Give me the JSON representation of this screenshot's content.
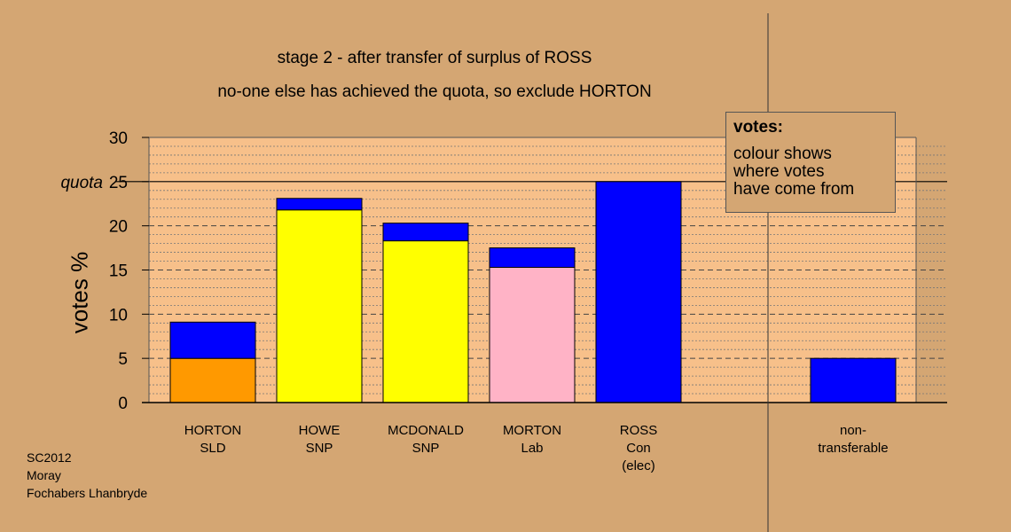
{
  "title_line1": "stage 2 - after transfer of surplus of ROSS",
  "title_line2": "no-one else has achieved the quota, so exclude HORTON",
  "legend": {
    "title": "votes:",
    "lines": [
      "colour shows",
      "where votes",
      "have come from"
    ]
  },
  "footer": [
    "SC2012",
    "Moray",
    "Fochabers Lhanbryde"
  ],
  "colors": {
    "background": "#d4a673",
    "plot_area": "#f7c08a",
    "transfer": "#0000ff",
    "SLD": "#ff9900",
    "SNP": "#ffff00",
    "Lab": "#ffb3c6",
    "Con": "#0000ff"
  },
  "chart_data": {
    "type": "bar",
    "stacked": true,
    "title": "stage 2 - after transfer of surplus of ROSS",
    "subtitle": "no-one else has achieved the quota, so exclude HORTON",
    "ylabel": "votes %",
    "ylim": [
      0,
      30
    ],
    "yticks": [
      0,
      5,
      10,
      15,
      20,
      25,
      30
    ],
    "ytick_labels": [
      "0",
      "5",
      "10",
      "15",
      "20",
      "quota 25",
      "30"
    ],
    "quota": 25,
    "grid": true,
    "categories": [
      {
        "lines": [
          "HORTON",
          "SLD"
        ],
        "party": "SLD"
      },
      {
        "lines": [
          "HOWE",
          "SNP"
        ],
        "party": "SNP"
      },
      {
        "lines": [
          "MCDONALD",
          "SNP"
        ],
        "party": "SNP"
      },
      {
        "lines": [
          "MORTON",
          "Lab"
        ],
        "party": "Lab"
      },
      {
        "lines": [
          "ROSS",
          "Con",
          "(elec)"
        ],
        "party": "Con"
      },
      {
        "lines": [
          "non-",
          "transferable"
        ],
        "party": "none"
      }
    ],
    "series": [
      {
        "key": "first_preferences",
        "values": [
          5.0,
          21.8,
          18.3,
          15.3,
          25.0,
          0
        ]
      },
      {
        "key": "transferred",
        "values": [
          4.1,
          1.3,
          2.0,
          2.2,
          0,
          5.0
        ]
      }
    ]
  }
}
